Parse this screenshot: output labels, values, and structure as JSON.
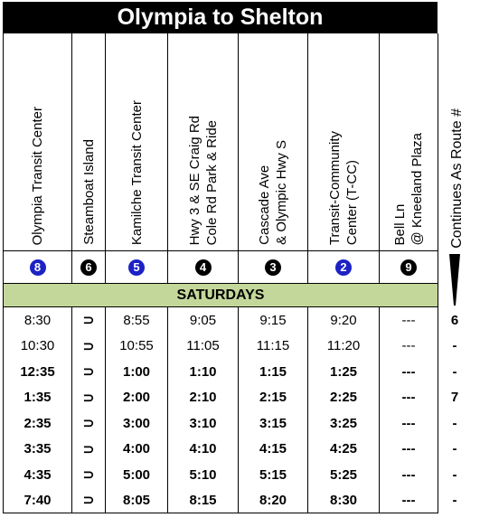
{
  "title": "Olympia to Shelton",
  "stops": [
    {
      "lines": [
        "Olympia Transit Center"
      ],
      "badge": "8",
      "badge_color": "blue"
    },
    {
      "lines": [
        "Steamboat Island"
      ],
      "badge": "6",
      "badge_color": "black"
    },
    {
      "lines": [
        "Kamilche Transit Center"
      ],
      "badge": "5",
      "badge_color": "blue"
    },
    {
      "lines": [
        "Hwy 3 &  SE Craig Rd",
        "Cole Rd Park & Ride"
      ],
      "badge": "4",
      "badge_color": "black"
    },
    {
      "lines": [
        "Cascade Ave",
        "& Olympic Hwy S"
      ],
      "badge": "3",
      "badge_color": "black"
    },
    {
      "lines": [
        "Transit-Community",
        "Center (T-CC)"
      ],
      "badge": "2",
      "badge_color": "blue"
    },
    {
      "lines": [
        "Bell Ln",
        "@ Kneeland Plaza"
      ],
      "badge": "9",
      "badge_color": "black"
    }
  ],
  "continues_label": "Continues As Route #",
  "day_label": "SATURDAYS",
  "trips": [
    {
      "times": [
        "8:30",
        "⊃",
        "8:55",
        "9:05",
        "9:15",
        "9:20",
        "---"
      ],
      "continues": "6",
      "bold": false
    },
    {
      "times": [
        "10:30",
        "⊃",
        "10:55",
        "11:05",
        "11:15",
        "11:20",
        "---"
      ],
      "continues": "-",
      "bold": false
    },
    {
      "times": [
        "12:35",
        "⊃",
        "1:00",
        "1:10",
        "1:15",
        "1:25",
        "---"
      ],
      "continues": "-",
      "bold": true
    },
    {
      "times": [
        "1:35",
        "⊃",
        "2:00",
        "2:10",
        "2:15",
        "2:25",
        "---"
      ],
      "continues": "7",
      "bold": true
    },
    {
      "times": [
        "2:35",
        "⊃",
        "3:00",
        "3:10",
        "3:15",
        "3:25",
        "---"
      ],
      "continues": "-",
      "bold": true
    },
    {
      "times": [
        "3:35",
        "⊃",
        "4:00",
        "4:10",
        "4:15",
        "4:25",
        "---"
      ],
      "continues": "-",
      "bold": true
    },
    {
      "times": [
        "4:35",
        "⊃",
        "5:00",
        "5:10",
        "5:15",
        "5:25",
        "---"
      ],
      "continues": "-",
      "bold": true
    },
    {
      "times": [
        "7:40",
        "⊃",
        "8:05",
        "8:15",
        "8:20",
        "8:30",
        "---"
      ],
      "continues": "-",
      "bold": true
    }
  ],
  "colors": {
    "band": "#c4d79b",
    "badge_blue": "#1c22c4",
    "title_bg": "#000000"
  }
}
